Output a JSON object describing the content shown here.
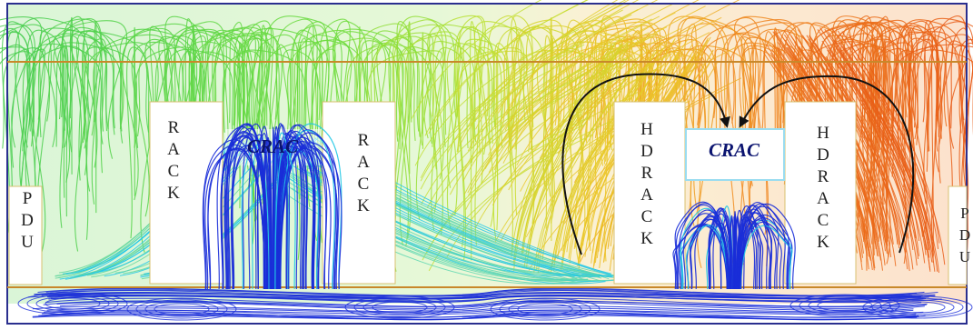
{
  "diagram": {
    "labels": {
      "pdu_left": [
        "P",
        "D",
        "U"
      ],
      "rack_1": [
        "R",
        "A",
        "C",
        "K"
      ],
      "crac_1": "CRAC",
      "rack_2": [
        "R",
        "A",
        "C",
        "K"
      ],
      "hdrack_1": [
        "H",
        "D",
        "R",
        "A",
        "C",
        "K"
      ],
      "crac_2": "CRAC",
      "hdrack_2": [
        "H",
        "D",
        "R",
        "A",
        "C",
        "K"
      ],
      "pdu_right": [
        "P",
        "D",
        "U"
      ]
    },
    "colors": {
      "cold": "#1a2ed8",
      "cyan": "#22c8e6",
      "green": "#55d63a",
      "yellow": "#d8e02a",
      "orange": "#f08a1a",
      "red": "#e0401a",
      "arrow": "#111111",
      "frame": "#2a2f8f",
      "ceiling_line": "#c8882a"
    }
  }
}
